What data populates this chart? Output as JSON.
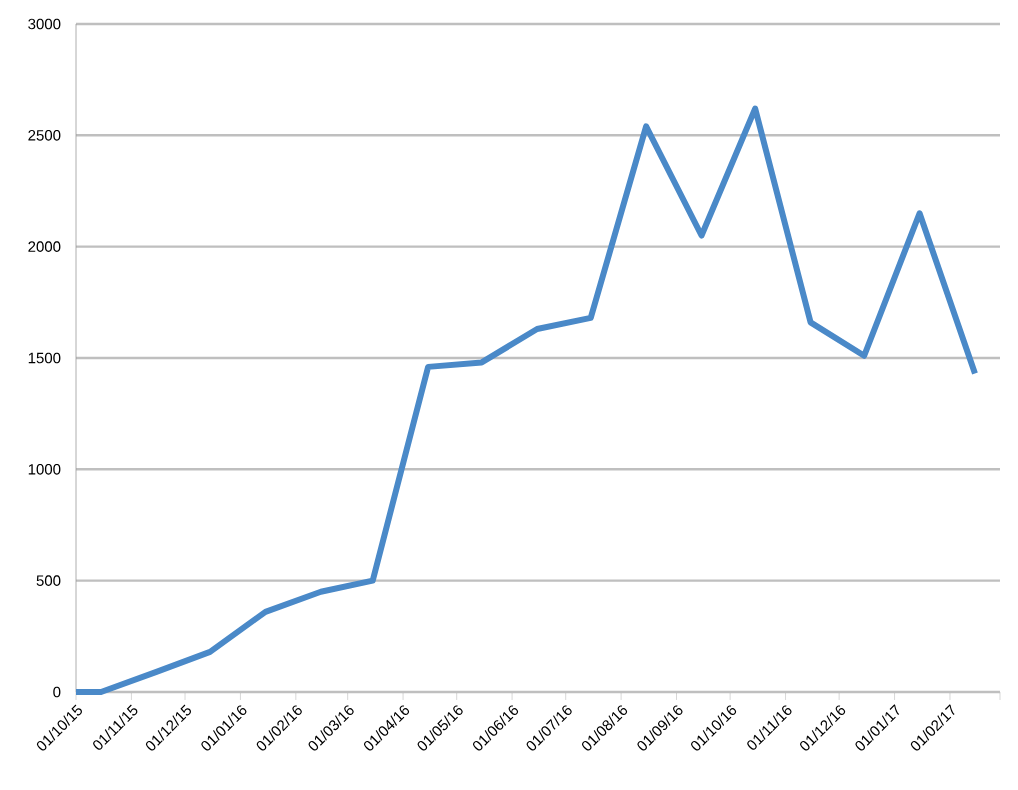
{
  "chart_data": {
    "type": "line",
    "x": [
      "2015-10-01",
      "2015-10-15",
      "2015-11-15",
      "2015-12-15",
      "2016-01-15",
      "2016-02-15",
      "2016-03-15",
      "2016-04-15",
      "2016-05-15",
      "2016-06-15",
      "2016-07-15",
      "2016-08-15",
      "2016-09-15",
      "2016-10-15",
      "2016-11-15",
      "2016-12-15",
      "2017-01-15",
      "2017-02-15"
    ],
    "series": [
      {
        "color": "#4a89c8",
        "values": [
          0,
          0,
          90,
          180,
          360,
          450,
          500,
          1460,
          1480,
          1630,
          1680,
          2540,
          2050,
          2620,
          1660,
          1510,
          2150,
          1430
        ]
      }
    ],
    "xlim": [
      "2015-10-01",
      "2017-03-01"
    ],
    "xticks": [
      {
        "value": "2015-10-01",
        "label": "01/10/15"
      },
      {
        "value": "2015-11-01",
        "label": "01/11/15"
      },
      {
        "value": "2015-12-01",
        "label": "01/12/15"
      },
      {
        "value": "2016-01-01",
        "label": "01/01/16"
      },
      {
        "value": "2016-02-01",
        "label": "01/02/16"
      },
      {
        "value": "2016-03-01",
        "label": "01/03/16"
      },
      {
        "value": "2016-04-01",
        "label": "01/04/16"
      },
      {
        "value": "2016-05-01",
        "label": "01/05/16"
      },
      {
        "value": "2016-06-01",
        "label": "01/06/16"
      },
      {
        "value": "2016-07-01",
        "label": "01/07/16"
      },
      {
        "value": "2016-08-01",
        "label": "01/08/16"
      },
      {
        "value": "2016-09-01",
        "label": "01/09/16"
      },
      {
        "value": "2016-10-01",
        "label": "01/10/16"
      },
      {
        "value": "2016-11-01",
        "label": "01/11/16"
      },
      {
        "value": "2016-12-01",
        "label": "01/12/16"
      },
      {
        "value": "2017-01-01",
        "label": "01/01/17"
      },
      {
        "value": "2017-02-01",
        "label": "01/02/17"
      },
      {
        "value": "2017-03-01",
        "label": null
      }
    ],
    "ylim": [
      0,
      3000
    ],
    "yticks": [
      0,
      500,
      1000,
      1500,
      2000,
      2500,
      3000
    ],
    "grid": "y",
    "marker": "none",
    "line_style": "solid"
  }
}
